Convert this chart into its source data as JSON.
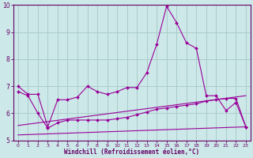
{
  "x": [
    0,
    1,
    2,
    3,
    4,
    5,
    6,
    7,
    8,
    9,
    10,
    11,
    12,
    13,
    14,
    15,
    16,
    17,
    18,
    19,
    20,
    21,
    22,
    23
  ],
  "line1": [
    7.0,
    6.7,
    6.7,
    5.5,
    6.5,
    6.5,
    6.6,
    7.0,
    6.8,
    6.7,
    6.8,
    6.95,
    6.95,
    7.5,
    8.55,
    9.95,
    9.35,
    8.6,
    8.4,
    6.65,
    6.65,
    6.1,
    6.4,
    5.5
  ],
  "line2": [
    6.8,
    6.65,
    6.0,
    5.45,
    5.65,
    5.75,
    5.75,
    5.75,
    5.75,
    5.75,
    5.8,
    5.85,
    5.95,
    6.05,
    6.15,
    6.2,
    6.25,
    6.3,
    6.35,
    6.45,
    6.5,
    6.55,
    6.55,
    5.5
  ],
  "line3_x": [
    0,
    23
  ],
  "line3_y": [
    5.55,
    6.65
  ],
  "line4_x": [
    0,
    23
  ],
  "line4_y": [
    5.2,
    5.5
  ],
  "line_color": "#990099",
  "bg_color": "#cce8e8",
  "grid_color": "#aacccc",
  "axis_color": "#660066",
  "ylim": [
    5.0,
    10.0
  ],
  "xlim": [
    -0.5,
    23.5
  ],
  "xlabel": "Windchill (Refroidissement éolien,°C)",
  "yticks": [
    5,
    6,
    7,
    8,
    9,
    10
  ],
  "xticks": [
    0,
    1,
    2,
    3,
    4,
    5,
    6,
    7,
    8,
    9,
    10,
    11,
    12,
    13,
    14,
    15,
    16,
    17,
    18,
    19,
    20,
    21,
    22,
    23
  ]
}
